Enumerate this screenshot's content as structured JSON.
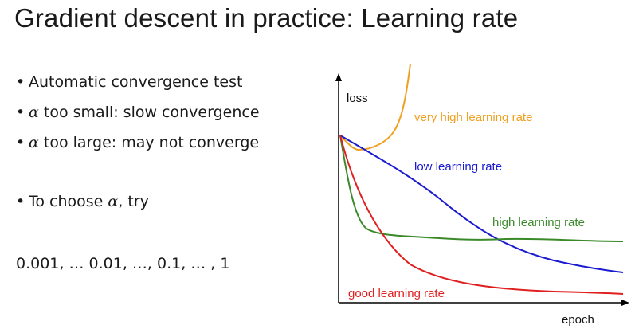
{
  "slide": {
    "title": "Gradient descent in practice: Learning rate"
  },
  "bullets": [
    {
      "bullet": "•",
      "pre": "Automatic convergence test",
      "greek": "",
      "post": ""
    },
    {
      "bullet": "•",
      "pre": "",
      "greek": "α",
      "post": " too small: slow convergence"
    },
    {
      "bullet": "•",
      "pre": "",
      "greek": "α",
      "post": " too large: may not converge"
    },
    {
      "bullet": "•",
      "pre": "To choose ",
      "greek": "α",
      "post": ", try"
    }
  ],
  "values_line": "0.001, … 0.01, …, 0.1, … , 1",
  "chart_data": {
    "type": "line",
    "xlabel": "epoch",
    "ylabel": "loss",
    "grid": false,
    "series": [
      {
        "name": "very high learning rate",
        "color": "#f0a020"
      },
      {
        "name": "low learning rate",
        "color": "#1a1ad0"
      },
      {
        "name": "high learning rate",
        "color": "#3a8a2a"
      },
      {
        "name": "good learning rate",
        "color": "#e02020"
      }
    ]
  }
}
